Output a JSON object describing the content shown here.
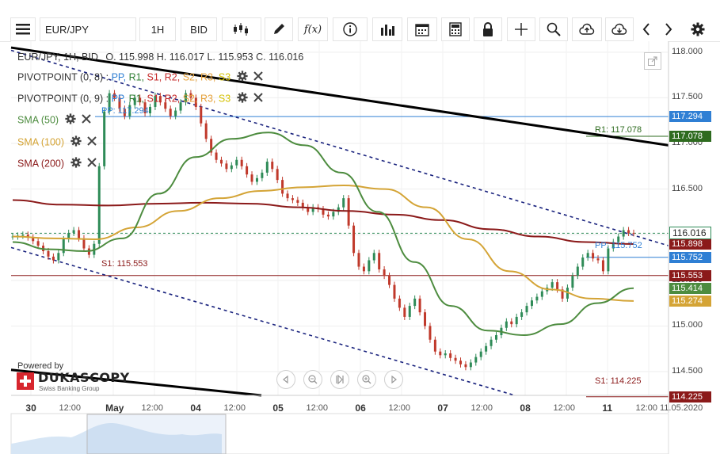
{
  "toolbar": {
    "instrument": "EUR/JPY",
    "period": "1H",
    "side": "BID",
    "fx_label": "f(x)",
    "icons": [
      "menu-icon",
      "candlestick-icon",
      "pencil-icon",
      "function-icon",
      "info-icon",
      "bar-chart-icon",
      "calendar-icon",
      "calculator-icon",
      "lock-icon",
      "crosshair-icon",
      "zoom-icon",
      "cloud-upload-icon",
      "cloud-download-icon",
      "chevron-left-icon",
      "chevron-right-icon",
      "gear-icon"
    ]
  },
  "legend": {
    "header": "EUR/JPY, 1H, BID",
    "ohlc": "O. 115.998 H. 116.017 L. 115.953 C. 116.016",
    "pivot1_name": "PIVOTPOINT (0, 8)",
    "pivot2_name": "PIVOTPOINT (0, 9)",
    "pivot_keys": [
      {
        "label": "PP",
        "color": "#2f7fd4"
      },
      {
        "label": "R1",
        "color": "#2e7d32"
      },
      {
        "label": "S1",
        "color": "#c62828"
      },
      {
        "label": "R2",
        "color": "#c62828"
      },
      {
        "label": "S2",
        "color": "#e6a23c"
      },
      {
        "label": "R3",
        "color": "#e6a23c"
      },
      {
        "label": "S3",
        "color": "#d4c100"
      }
    ],
    "sma50": "SMA (50)",
    "sma100": "SMA (100)",
    "sma200": "SMA (200)",
    "colon": ":"
  },
  "colors": {
    "sma50": "#4d8c3f",
    "sma100": "#d4a436",
    "sma200": "#8b1a1a",
    "candle_up": "#2e8b57",
    "candle_down": "#c0392b",
    "pp": "#2f7fd4",
    "r1": "#2e6b1f",
    "s1": "#8b1a1a",
    "trend": "#000000",
    "channel": "#1a237e"
  },
  "chart_data": {
    "type": "candlestick",
    "instrument": "EUR/JPY",
    "timeframe": "1H",
    "ohlc_last": {
      "open": 115.998,
      "high": 116.017,
      "low": 115.953,
      "close": 116.016
    },
    "ylim": [
      114.24,
      118.12
    ],
    "y_ticks": [
      "118.000",
      "117.500",
      "117.000",
      "116.500",
      "116.000",
      "115.500",
      "115.000",
      "114.500"
    ],
    "x_ticks": [
      {
        "label": "30",
        "major": true
      },
      {
        "label": "12:00",
        "major": false
      },
      {
        "label": "May",
        "major": true
      },
      {
        "label": "12:00",
        "major": false
      },
      {
        "label": "04",
        "major": true
      },
      {
        "label": "12:00",
        "major": false
      },
      {
        "label": "05",
        "major": true
      },
      {
        "label": "12:00",
        "major": false
      },
      {
        "label": "06",
        "major": true
      },
      {
        "label": "12:00",
        "major": false
      },
      {
        "label": "07",
        "major": true
      },
      {
        "label": "12:00",
        "major": false
      },
      {
        "label": "08",
        "major": true
      },
      {
        "label": "12:00",
        "major": false
      },
      {
        "label": "11",
        "major": true
      },
      {
        "label": "12:00",
        "major": false
      },
      {
        "label": "11.05.2020",
        "major": false
      }
    ],
    "price_levels": [
      {
        "name": "PP (prev)",
        "value": 117.294,
        "label": "PP: 117.294",
        "tag": "117.294",
        "color": "#2f7fd4"
      },
      {
        "name": "R1",
        "value": 117.078,
        "label": "R1: 117.078",
        "tag": "117.078",
        "color": "#2e6b1f"
      },
      {
        "name": "S1 (prev)",
        "value": 115.553,
        "label": "S1: 115.553",
        "tag": "115.553",
        "color": "#8b1a1a"
      },
      {
        "name": "PP",
        "value": 115.752,
        "label": "PP: 115.752",
        "tag": "115.752",
        "color": "#2f7fd4"
      },
      {
        "name": "S1",
        "value": 114.225,
        "label": "S1: 114.225",
        "tag": "114.225",
        "color": "#8b1a1a"
      }
    ],
    "current_price": {
      "value": 116.016,
      "tag": "116.016"
    },
    "indicator_tags": [
      {
        "name": "SMA (200)",
        "value": 115.898,
        "tag": "115.898",
        "color": "#8b1a1a"
      },
      {
        "name": "SMA (50)",
        "value": 115.414,
        "tag": "115.414",
        "color": "#4d8c3f"
      },
      {
        "name": "SMA (100)",
        "value": 115.274,
        "tag": "115.274",
        "color": "#d4a436"
      }
    ],
    "close_series": [
      115.98,
      115.99,
      116.0,
      115.97,
      115.93,
      115.88,
      115.82,
      115.76,
      115.72,
      115.8,
      115.95,
      116.02,
      116.05,
      115.96,
      115.85,
      115.78,
      115.9,
      116.75,
      117.35,
      117.55,
      117.5,
      117.38,
      117.3,
      117.42,
      117.5,
      117.45,
      117.33,
      117.4,
      117.52,
      117.45,
      117.38,
      117.3,
      117.36,
      117.45,
      117.55,
      117.5,
      117.4,
      117.22,
      117.05,
      116.9,
      116.82,
      116.78,
      116.72,
      116.76,
      116.82,
      116.75,
      116.66,
      116.58,
      116.62,
      116.68,
      116.8,
      116.72,
      116.6,
      116.45,
      116.4,
      116.38,
      116.35,
      116.3,
      116.25,
      116.3,
      116.28,
      116.22,
      116.2,
      116.25,
      116.3,
      116.4,
      116.1,
      115.8,
      115.65,
      115.6,
      115.72,
      115.8,
      115.62,
      115.55,
      115.45,
      115.3,
      115.2,
      115.1,
      115.22,
      115.3,
      115.15,
      115.0,
      114.85,
      114.72,
      114.68,
      114.7,
      114.65,
      114.62,
      114.58,
      114.55,
      114.6,
      114.66,
      114.72,
      114.78,
      114.85,
      114.9,
      114.98,
      115.05,
      115.02,
      115.1,
      115.15,
      115.22,
      115.28,
      115.32,
      115.38,
      115.42,
      115.48,
      115.4,
      115.3,
      115.42,
      115.55,
      115.65,
      115.75,
      115.8,
      115.74,
      115.72,
      115.6,
      115.85,
      115.92,
      115.98,
      116.05,
      116.02,
      116.016
    ],
    "sma50": [
      115.92,
      115.84,
      115.82,
      115.96,
      116.45,
      116.85,
      117.05,
      117.12,
      116.98,
      116.68,
      116.25,
      115.7,
      115.22,
      114.95,
      114.9,
      115.02,
      115.25,
      115.414
    ],
    "sma100": [
      115.98,
      115.96,
      115.95,
      116.08,
      116.26,
      116.4,
      116.48,
      116.52,
      116.54,
      116.5,
      116.3,
      115.95,
      115.6,
      115.4,
      115.3,
      115.274
    ],
    "sma200": [
      116.38,
      116.33,
      116.32,
      116.34,
      116.35,
      116.34,
      116.3,
      116.26,
      116.22,
      116.16,
      116.06,
      115.98,
      115.92,
      115.898
    ]
  },
  "chart_text": {
    "pp_prev_label": "PP: 117.294",
    "r1_label": "R1: 117.078",
    "s1_prev_label": "S1: 115.553",
    "pp_label": "PP: 115.752",
    "s1_label": "S1: 114.225",
    "powered_by": "Powered by",
    "brand": "DUKASCOPY",
    "brand_sub": "Swiss Banking Group"
  },
  "navigator": {
    "buttons": [
      "scroll-left-icon",
      "zoom-out-icon",
      "reset-zoom-icon",
      "zoom-in-icon",
      "scroll-right-icon"
    ]
  }
}
